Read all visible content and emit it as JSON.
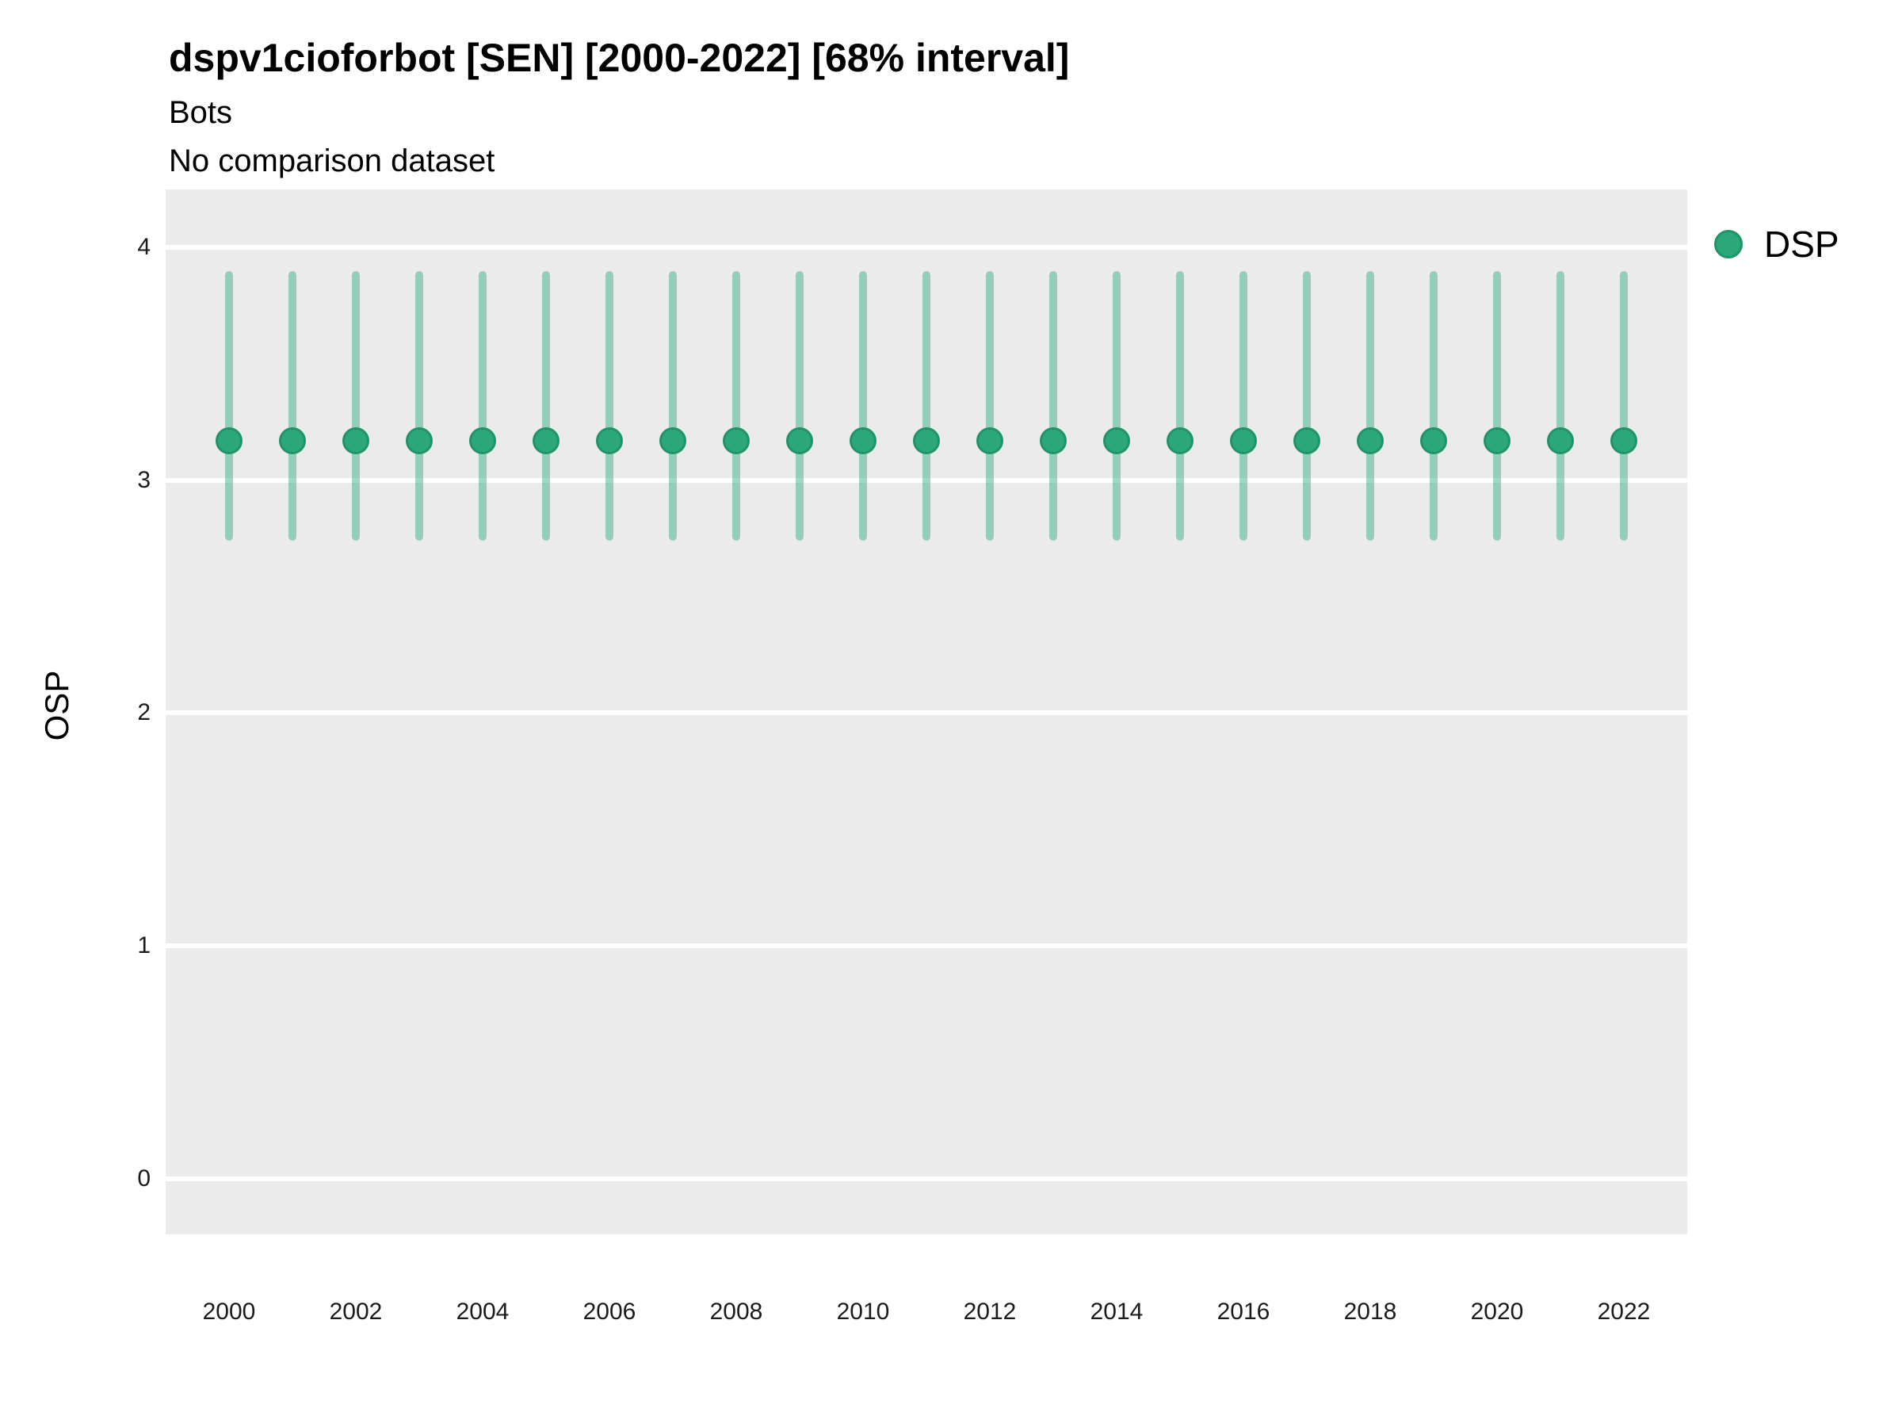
{
  "figure": {
    "title": "dspv1cioforbot [SEN] [2000-2022] [68% interval]",
    "subtitle": "Bots",
    "note": "No comparison dataset",
    "y_axis_title": "OSP"
  },
  "legend": {
    "label": "DSP"
  },
  "colors": {
    "point_fill": "#2aa87a",
    "point_stroke": "#1f9466",
    "interval_line": "rgba(42,168,122,0.45)",
    "panel_background": "#ebebeb",
    "gridline": "#ffffff",
    "title_text": "#000000",
    "tick_text": "#1a1a1a"
  },
  "chart_data": {
    "type": "pointrange",
    "title": "dspv1cioforbot [SEN] [2000-2022] [68% interval]",
    "subtitle": "Bots",
    "note": "No comparison dataset",
    "xlabel": "",
    "ylabel": "OSP",
    "legend_position": "top-right",
    "grid": "horizontal-major-white",
    "x": [
      2000,
      2001,
      2002,
      2003,
      2004,
      2005,
      2006,
      2007,
      2008,
      2009,
      2010,
      2011,
      2012,
      2013,
      2014,
      2015,
      2016,
      2017,
      2018,
      2019,
      2020,
      2021,
      2022
    ],
    "series": [
      {
        "name": "DSP",
        "center": [
          3.17,
          3.17,
          3.17,
          3.17,
          3.17,
          3.17,
          3.17,
          3.17,
          3.17,
          3.17,
          3.17,
          3.17,
          3.17,
          3.17,
          3.17,
          3.17,
          3.17,
          3.17,
          3.17,
          3.17,
          3.17,
          3.17,
          3.17
        ],
        "lower": [
          2.74,
          2.74,
          2.74,
          2.74,
          2.74,
          2.74,
          2.74,
          2.74,
          2.74,
          2.74,
          2.74,
          2.74,
          2.74,
          2.74,
          2.74,
          2.74,
          2.74,
          2.74,
          2.74,
          2.74,
          2.74,
          2.74,
          2.74
        ],
        "upper": [
          3.9,
          3.9,
          3.9,
          3.9,
          3.9,
          3.9,
          3.9,
          3.9,
          3.9,
          3.9,
          3.9,
          3.9,
          3.9,
          3.9,
          3.9,
          3.9,
          3.9,
          3.9,
          3.9,
          3.9,
          3.9,
          3.9,
          3.9
        ]
      }
    ],
    "xticks": [
      2000,
      2002,
      2004,
      2006,
      2008,
      2010,
      2012,
      2014,
      2016,
      2018,
      2020,
      2022
    ],
    "yticks": [
      0,
      1,
      2,
      3,
      4
    ],
    "xlim": [
      1999,
      2023
    ],
    "ylim": [
      -0.24,
      4.25
    ]
  }
}
